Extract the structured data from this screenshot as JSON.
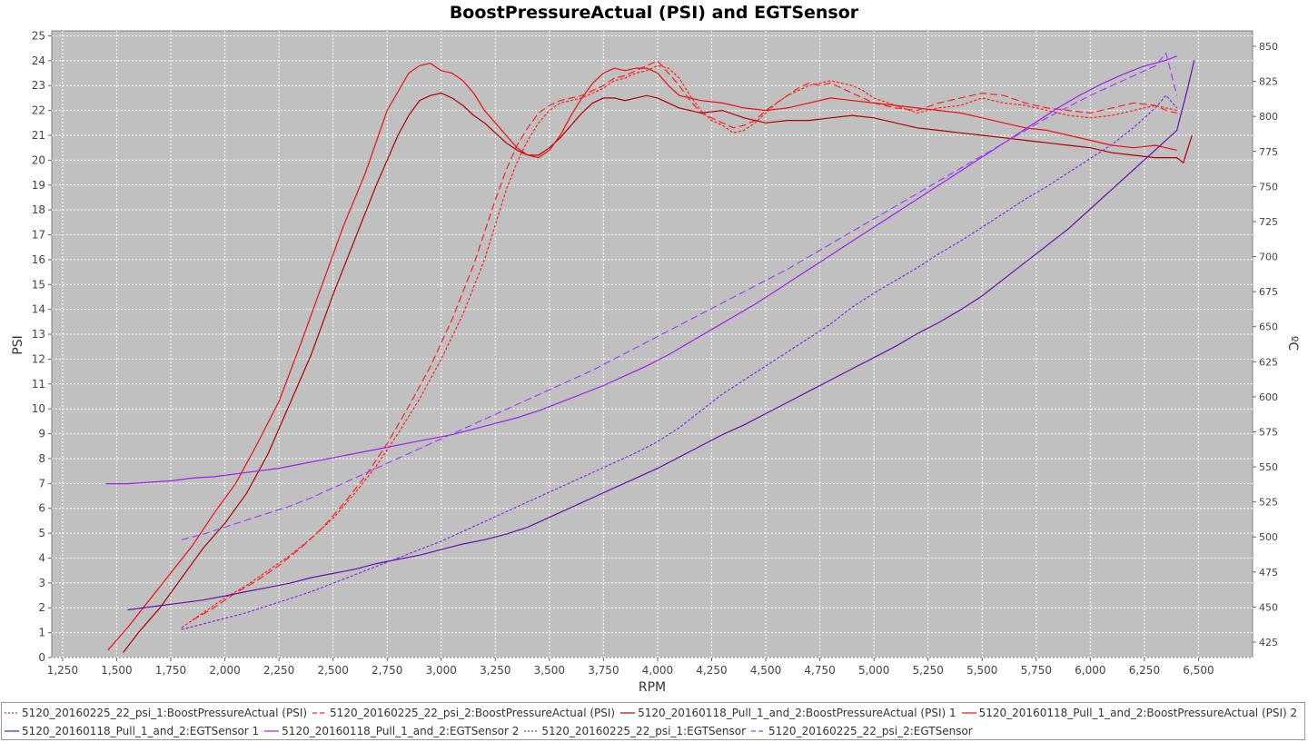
{
  "chart_data": {
    "type": "line",
    "title": "BoostPressureActual (PSI) and EGTSensor",
    "xlabel": "RPM",
    "ylabel": "PSI",
    "y2label": "ºC",
    "xlim": [
      1200,
      6750
    ],
    "ylim": [
      0,
      25.2
    ],
    "y2lim": [
      414,
      861
    ],
    "xticks": [
      "1,250",
      "1,500",
      "1,750",
      "2,000",
      "2,250",
      "2,500",
      "2,750",
      "3,000",
      "3,250",
      "3,500",
      "3,750",
      "4,000",
      "4,250",
      "4,500",
      "4,750",
      "5,000",
      "5,250",
      "5,500",
      "5,750",
      "6,000",
      "6,250",
      "6,500"
    ],
    "xtick_values": [
      1250,
      1500,
      1750,
      2000,
      2250,
      2500,
      2750,
      3000,
      3250,
      3500,
      3750,
      4000,
      4250,
      4500,
      4750,
      5000,
      5250,
      5500,
      5750,
      6000,
      6250,
      6500
    ],
    "yticks": [
      0,
      1,
      2,
      3,
      4,
      5,
      6,
      7,
      8,
      9,
      10,
      11,
      12,
      13,
      14,
      15,
      16,
      17,
      18,
      19,
      20,
      21,
      22,
      23,
      24,
      25
    ],
    "y2ticks": [
      425,
      450,
      475,
      500,
      525,
      550,
      575,
      600,
      625,
      650,
      675,
      700,
      725,
      750,
      775,
      800,
      825,
      850
    ],
    "grid": true,
    "legend_position": "bottom",
    "background": "#c0c0c0",
    "series": [
      {
        "name": "5120_20160225_22_psi_1:BoostPressureActual (PSI)",
        "axis": "left",
        "color": "#ff2020",
        "dash": "short",
        "x": [
          1800,
          1900,
          2000,
          2100,
          2200,
          2300,
          2400,
          2500,
          2600,
          2700,
          2800,
          2900,
          3000,
          3100,
          3200,
          3300,
          3350,
          3400,
          3450,
          3500,
          3550,
          3600,
          3650,
          3700,
          3750,
          3800,
          3850,
          3900,
          3950,
          4000,
          4050,
          4100,
          4150,
          4200,
          4250,
          4300,
          4350,
          4400,
          4450,
          4500,
          4550,
          4600,
          4650,
          4700,
          4750,
          4800,
          4850,
          4900,
          4950,
          5000,
          5100,
          5200,
          5300,
          5400,
          5500,
          5600,
          5700,
          5800,
          5900,
          6000,
          6100,
          6200,
          6300,
          6350,
          6400
        ],
        "y": [
          1.2,
          1.8,
          2.4,
          2.9,
          3.5,
          4.1,
          4.8,
          5.6,
          6.6,
          7.7,
          9.0,
          10.4,
          12.0,
          13.8,
          16.0,
          18.8,
          19.9,
          20.8,
          21.5,
          22.0,
          22.3,
          22.4,
          22.5,
          22.7,
          22.9,
          23.2,
          23.3,
          23.5,
          23.6,
          23.8,
          23.7,
          23.3,
          22.6,
          22.0,
          21.6,
          21.4,
          21.1,
          21.2,
          21.5,
          21.9,
          22.3,
          22.6,
          22.8,
          23.0,
          23.1,
          23.2,
          23.1,
          23.0,
          22.8,
          22.5,
          22.2,
          21.9,
          22.1,
          22.2,
          22.5,
          22.3,
          22.2,
          22.0,
          21.8,
          21.7,
          21.8,
          22.0,
          22.2,
          22.1,
          22.0
        ]
      },
      {
        "name": "5120_20160225_22_psi_2:BoostPressureActual (PSI)",
        "axis": "left",
        "color": "#ff2020",
        "dash": "long",
        "x": [
          1850,
          1950,
          2050,
          2150,
          2250,
          2350,
          2450,
          2550,
          2650,
          2750,
          2850,
          2950,
          3050,
          3150,
          3250,
          3300,
          3350,
          3400,
          3450,
          3500,
          3550,
          3600,
          3650,
          3700,
          3750,
          3800,
          3850,
          3900,
          3950,
          4000,
          4050,
          4100,
          4150,
          4200,
          4250,
          4300,
          4350,
          4400,
          4450,
          4500,
          4550,
          4600,
          4650,
          4700,
          4750,
          4800,
          4850,
          4900,
          5000,
          5100,
          5200,
          5300,
          5400,
          5500,
          5600,
          5700,
          5800,
          5900,
          6000,
          6100,
          6200,
          6300,
          6350,
          6400
        ],
        "y": [
          1.5,
          2.0,
          2.6,
          3.1,
          3.7,
          4.4,
          5.2,
          6.2,
          7.3,
          8.6,
          10.1,
          11.7,
          13.6,
          15.8,
          18.4,
          19.6,
          20.6,
          21.3,
          21.9,
          22.2,
          22.4,
          22.5,
          22.6,
          22.8,
          23.0,
          23.3,
          23.4,
          23.6,
          23.8,
          24.0,
          23.5,
          23.0,
          22.4,
          21.9,
          21.7,
          21.5,
          21.3,
          21.4,
          21.6,
          22.0,
          22.3,
          22.6,
          22.9,
          23.1,
          23.0,
          23.1,
          22.9,
          22.7,
          22.3,
          22.1,
          22.0,
          22.3,
          22.5,
          22.7,
          22.6,
          22.3,
          22.1,
          22.0,
          21.9,
          22.1,
          22.3,
          22.2,
          22.0,
          21.9
        ]
      },
      {
        "name": "5120_20160118_Pull_1_and_2:BoostPressureActual (PSI) 1",
        "axis": "left",
        "color": "#b00000",
        "dash": "solid",
        "x": [
          1530,
          1600,
          1700,
          1800,
          1900,
          2000,
          2100,
          2200,
          2300,
          2400,
          2500,
          2600,
          2700,
          2800,
          2850,
          2900,
          2950,
          3000,
          3050,
          3100,
          3150,
          3200,
          3250,
          3300,
          3350,
          3400,
          3450,
          3500,
          3550,
          3600,
          3650,
          3700,
          3750,
          3800,
          3850,
          3900,
          3950,
          4000,
          4050,
          4100,
          4200,
          4300,
          4400,
          4500,
          4600,
          4700,
          4800,
          4900,
          5000,
          5100,
          5200,
          5300,
          5400,
          5500,
          5600,
          5700,
          5800,
          5900,
          6000,
          6100,
          6200,
          6300,
          6400,
          6430,
          6470
        ],
        "y": [
          0.2,
          1.0,
          2.0,
          3.2,
          4.4,
          5.4,
          6.6,
          8.2,
          10.2,
          12.2,
          14.6,
          16.8,
          19.0,
          21.0,
          21.8,
          22.4,
          22.6,
          22.7,
          22.5,
          22.2,
          21.8,
          21.5,
          21.1,
          20.7,
          20.4,
          20.2,
          20.2,
          20.5,
          20.9,
          21.4,
          21.9,
          22.3,
          22.5,
          22.5,
          22.4,
          22.5,
          22.6,
          22.5,
          22.3,
          22.1,
          21.9,
          22.0,
          21.7,
          21.5,
          21.6,
          21.6,
          21.7,
          21.8,
          21.7,
          21.5,
          21.3,
          21.2,
          21.1,
          21.0,
          20.9,
          20.8,
          20.7,
          20.6,
          20.5,
          20.3,
          20.2,
          20.1,
          20.1,
          19.9,
          21.0
        ]
      },
      {
        "name": "5120_20160118_Pull_1_and_2:BoostPressureActual (PSI) 2",
        "axis": "left",
        "color": "#ee1010",
        "dash": "solid",
        "x": [
          1460,
          1550,
          1650,
          1750,
          1850,
          1950,
          2050,
          2150,
          2250,
          2350,
          2450,
          2550,
          2650,
          2750,
          2850,
          2900,
          2950,
          3000,
          3050,
          3100,
          3150,
          3200,
          3250,
          3300,
          3350,
          3400,
          3450,
          3500,
          3550,
          3600,
          3650,
          3700,
          3750,
          3800,
          3850,
          3900,
          3950,
          4000,
          4050,
          4100,
          4150,
          4200,
          4300,
          4400,
          4500,
          4600,
          4700,
          4800,
          4900,
          5000,
          5100,
          5200,
          5300,
          5400,
          5500,
          5600,
          5700,
          5800,
          5900,
          6000,
          6100,
          6200,
          6300,
          6400
        ],
        "y": [
          0.3,
          1.2,
          2.3,
          3.4,
          4.5,
          5.8,
          7.0,
          8.6,
          10.3,
          12.6,
          15.0,
          17.4,
          19.5,
          22.0,
          23.5,
          23.8,
          23.9,
          23.6,
          23.5,
          23.2,
          22.7,
          22.0,
          21.5,
          21.0,
          20.5,
          20.2,
          20.1,
          20.4,
          21.0,
          21.8,
          22.5,
          23.1,
          23.5,
          23.7,
          23.6,
          23.7,
          23.7,
          23.5,
          23.0,
          22.6,
          22.5,
          22.4,
          22.3,
          22.1,
          22.0,
          22.1,
          22.3,
          22.5,
          22.4,
          22.3,
          22.2,
          22.1,
          22.0,
          21.9,
          21.7,
          21.5,
          21.3,
          21.2,
          21.0,
          20.8,
          20.6,
          20.5,
          20.6,
          20.4
        ]
      },
      {
        "name": "5120_20160118_Pull_1_and_2:EGTSensor 1",
        "axis": "right",
        "color": "#6a0dad",
        "dash": "solid",
        "x": [
          1550,
          1700,
          1800,
          1900,
          2000,
          2100,
          2200,
          2300,
          2400,
          2500,
          2600,
          2700,
          2800,
          2900,
          3000,
          3100,
          3200,
          3300,
          3400,
          3500,
          3600,
          3700,
          3800,
          3900,
          4000,
          4100,
          4200,
          4300,
          4400,
          4500,
          4600,
          4700,
          4800,
          4900,
          5000,
          5100,
          5200,
          5300,
          5400,
          5500,
          5600,
          5700,
          5800,
          5900,
          6000,
          6100,
          6200,
          6300,
          6400,
          6450,
          6480
        ],
        "y": [
          448,
          451,
          453,
          455,
          458,
          461,
          464,
          467,
          471,
          474,
          477,
          481,
          484,
          487,
          491,
          495,
          498,
          502,
          507,
          514,
          521,
          528,
          535,
          542,
          549,
          557,
          565,
          573,
          580,
          588,
          596,
          604,
          612,
          620,
          628,
          636,
          645,
          653,
          662,
          672,
          684,
          696,
          708,
          720,
          734,
          748,
          762,
          776,
          790,
          820,
          840
        ]
      },
      {
        "name": "5120_20160118_Pull_1_and_2:EGTSensor 2",
        "axis": "right",
        "color": "#a020f0",
        "dash": "solid",
        "x": [
          1450,
          1550,
          1650,
          1750,
          1850,
          1950,
          2050,
          2150,
          2250,
          2350,
          2450,
          2550,
          2650,
          2750,
          2850,
          2950,
          3050,
          3150,
          3250,
          3350,
          3450,
          3550,
          3650,
          3750,
          3850,
          3950,
          4050,
          4150,
          4250,
          4350,
          4450,
          4550,
          4650,
          4750,
          4850,
          4950,
          5050,
          5150,
          5250,
          5350,
          5450,
          5550,
          5650,
          5750,
          5850,
          5950,
          6050,
          6150,
          6250,
          6350,
          6400
        ],
        "y": [
          538,
          538,
          539,
          540,
          542,
          543,
          545,
          547,
          549,
          552,
          555,
          558,
          561,
          564,
          567,
          570,
          573,
          577,
          581,
          585,
          590,
          596,
          602,
          608,
          615,
          622,
          630,
          639,
          648,
          657,
          666,
          676,
          686,
          696,
          706,
          716,
          726,
          736,
          746,
          756,
          766,
          776,
          786,
          796,
          806,
          815,
          823,
          830,
          836,
          840,
          843
        ]
      },
      {
        "name": "5120_20160225_22_psi_1:EGTSensor",
        "axis": "right",
        "color": "#8a2be2",
        "dash": "short",
        "x": [
          1800,
          1900,
          2000,
          2100,
          2200,
          2300,
          2400,
          2500,
          2600,
          2700,
          2800,
          2900,
          3000,
          3100,
          3200,
          3300,
          3400,
          3500,
          3600,
          3700,
          3800,
          3900,
          4000,
          4100,
          4200,
          4300,
          4400,
          4500,
          4600,
          4700,
          4800,
          4900,
          5000,
          5100,
          5200,
          5300,
          5400,
          5500,
          5600,
          5700,
          5800,
          5900,
          6000,
          6100,
          6200,
          6300,
          6350,
          6400
        ],
        "y": [
          434,
          438,
          442,
          446,
          451,
          456,
          461,
          467,
          473,
          479,
          485,
          491,
          497,
          504,
          511,
          518,
          525,
          532,
          539,
          546,
          553,
          560,
          568,
          578,
          590,
          602,
          612,
          622,
          632,
          642,
          652,
          664,
          674,
          683,
          692,
          702,
          711,
          721,
          731,
          741,
          750,
          760,
          770,
          780,
          792,
          806,
          815,
          806
        ]
      },
      {
        "name": "5120_20160225_22_psi_2:EGTSensor",
        "axis": "right",
        "color": "#a040ff",
        "dash": "long",
        "x": [
          1800,
          1900,
          2000,
          2100,
          2200,
          2300,
          2400,
          2500,
          2600,
          2700,
          2800,
          2900,
          3000,
          3100,
          3200,
          3300,
          3400,
          3500,
          3600,
          3700,
          3800,
          3900,
          4000,
          4100,
          4200,
          4300,
          4400,
          4500,
          4600,
          4700,
          4800,
          4900,
          5000,
          5100,
          5200,
          5300,
          5400,
          5500,
          5600,
          5700,
          5800,
          5900,
          6000,
          6100,
          6200,
          6300,
          6350,
          6400
        ],
        "y": [
          498,
          502,
          507,
          512,
          517,
          522,
          528,
          535,
          542,
          549,
          556,
          563,
          570,
          577,
          584,
          591,
          598,
          605,
          612,
          619,
          627,
          635,
          643,
          651,
          659,
          667,
          675,
          683,
          691,
          700,
          709,
          718,
          727,
          736,
          745,
          754,
          763,
          772,
          781,
          790,
          799,
          807,
          815,
          822,
          829,
          836,
          845,
          815
        ]
      }
    ]
  }
}
